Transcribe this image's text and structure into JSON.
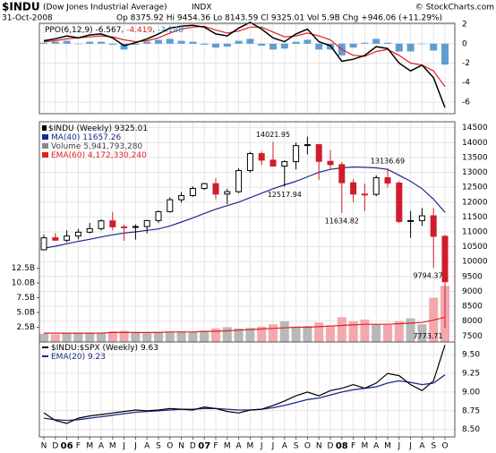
{
  "header": {
    "symbol": "$INDU",
    "name": "(Dow Jones Industrial Average)",
    "exchange": "INDX",
    "date": "31-Oct-2008",
    "quote": "Op 8375.92 Hi 9454.36 Lo 8143.59 Cl 9325.01 Vol 5.9B Chg +946.06 (+11.29%)",
    "copyright": "© StockCharts.com"
  },
  "chart_data": [
    {
      "type": "ppo",
      "title": "PPO(6,12,9)",
      "ylim": [
        -7.2,
        2.1
      ],
      "yticks": [
        2,
        0,
        -2,
        -4,
        -6
      ],
      "grid": true,
      "series": [
        {
          "color": "#000000",
          "values": [
            0.3,
            0.5,
            0.8,
            0.6,
            0.9,
            1.0,
            0.6,
            -0.2,
            0.1,
            0.5,
            1.0,
            1.6,
            1.8,
            1.9,
            1.7,
            1.0,
            0.8,
            1.6,
            2.2,
            1.5,
            0.6,
            0.2,
            1.0,
            1.5,
            0.2,
            -0.2,
            -1.8,
            -1.6,
            -1.2,
            -0.3,
            -0.5,
            -2.0,
            -2.8,
            -2.2,
            -3.5,
            -6.567
          ]
        },
        {
          "color": "#e02020",
          "values": [
            0.2,
            0.3,
            0.5,
            0.6,
            0.7,
            0.8,
            0.7,
            0.4,
            0.2,
            0.3,
            0.6,
            1.1,
            1.5,
            1.7,
            1.8,
            1.4,
            1.1,
            1.3,
            1.7,
            1.7,
            1.2,
            0.7,
            0.8,
            1.1,
            0.8,
            0.4,
            -0.6,
            -1.2,
            -1.3,
            -0.8,
            -0.6,
            -1.2,
            -2.0,
            -2.2,
            -2.8,
            -4.419
          ]
        },
        {
          "color": "#3a86c8",
          "values": [
            0.1,
            0.2,
            0.3,
            0,
            0.2,
            0.2,
            -0.1,
            -0.6,
            -0.1,
            0.2,
            0.4,
            0.5,
            0.3,
            0.2,
            -0.1,
            -0.4,
            -0.3,
            0.3,
            0.5,
            -0.2,
            -0.6,
            -0.5,
            0.2,
            0.4,
            -0.6,
            -0.6,
            -1.2,
            -0.4,
            0.1,
            0.5,
            0.1,
            -0.8,
            -0.8,
            0,
            -0.7,
            -2.148
          ]
        }
      ]
    },
    {
      "type": "ohlc",
      "title": "$INDU (Weekly)",
      "ylim": [
        7300,
        14700
      ],
      "yticks": [
        14500,
        14000,
        13500,
        13000,
        12500,
        12000,
        11500,
        11000,
        10500,
        10000,
        9500,
        9000,
        8500,
        8000,
        7500
      ],
      "grid": true,
      "up_color": "#000000",
      "down_color": "#d01c2c",
      "open": [
        10400,
        10800,
        10720,
        10860,
        10990,
        11110,
        11370,
        11170,
        11150,
        11180,
        11380,
        11680,
        12080,
        12220,
        12460,
        12620,
        12270,
        12350,
        13060,
        13630,
        13410,
        13210,
        13360,
        13900,
        13930,
        13370,
        13260,
        12650,
        12270,
        12260,
        12820,
        12640,
        11350,
        11380,
        11540,
        10850
      ],
      "high": [
        10900,
        10950,
        11050,
        11100,
        11300,
        11420,
        11670,
        11250,
        11250,
        11400,
        11720,
        12160,
        12340,
        12530,
        12650,
        12800,
        12450,
        13140,
        13690,
        13700,
        14021.95,
        13400,
        14000,
        14200,
        13950,
        13750,
        13350,
        12770,
        12620,
        12900,
        13136.69,
        12700,
        11700,
        11800,
        11800,
        10900
      ],
      "low": [
        10380,
        10700,
        10650,
        10750,
        10950,
        11050,
        11050,
        10700,
        10740,
        10950,
        11300,
        11650,
        11980,
        12180,
        12400,
        12100,
        11930,
        12300,
        12990,
        13250,
        13200,
        12517.94,
        13100,
        13600,
        12750,
        13100,
        11634.82,
        12000,
        11700,
        12200,
        12500,
        11300,
        10800,
        11200,
        9794.37,
        7773.71
      ],
      "close": [
        10800,
        10720,
        10860,
        10990,
        11110,
        11370,
        11170,
        11150,
        11180,
        11380,
        11680,
        12080,
        12220,
        12460,
        12620,
        12270,
        12350,
        13060,
        13630,
        13410,
        13210,
        13360,
        13900,
        13930,
        13370,
        13260,
        12650,
        12270,
        12260,
        12820,
        12640,
        11350,
        11380,
        11540,
        10850,
        9325.01
      ],
      "annotations": [
        14021.95,
        12517.94,
        13136.69,
        11634.82,
        9794.37,
        7773.71
      ],
      "ma": {
        "name": "MA(40)",
        "color": "#1c2a8c",
        "values": [
          10450,
          10520,
          10600,
          10680,
          10750,
          10830,
          10900,
          10960,
          11000,
          11050,
          11100,
          11200,
          11330,
          11470,
          11620,
          11760,
          11880,
          12000,
          12150,
          12300,
          12450,
          12580,
          12700,
          12850,
          13000,
          13100,
          13150,
          13180,
          13170,
          13150,
          13100,
          12900,
          12700,
          12450,
          12100,
          11657.26
        ]
      },
      "volume": {
        "name": "Volume",
        "label": "5,941,793,280",
        "up_color": "#b8b8b8",
        "down_color": "#f2a9ae",
        "values": [
          1.4,
          1.3,
          1.5,
          1.5,
          1.5,
          1.5,
          1.8,
          1.9,
          1.7,
          1.5,
          1.7,
          1.8,
          1.8,
          1.7,
          1.9,
          2.3,
          2.5,
          2.3,
          2.4,
          2.6,
          3.0,
          3.5,
          2.6,
          2.7,
          3.3,
          2.8,
          4.2,
          3.5,
          3.8,
          3.0,
          2.9,
          3.5,
          4.0,
          3.0,
          7.5,
          9.5
        ]
      },
      "volume_ema": {
        "name": "EMA(60)",
        "label": "4,172,330,240",
        "color": "#e02020",
        "values": [
          1.5,
          1.5,
          1.5,
          1.5,
          1.5,
          1.5,
          1.6,
          1.6,
          1.6,
          1.6,
          1.6,
          1.7,
          1.7,
          1.7,
          1.8,
          1.8,
          1.9,
          2.0,
          2.1,
          2.2,
          2.3,
          2.4,
          2.5,
          2.5,
          2.6,
          2.7,
          2.8,
          2.9,
          3.0,
          3.0,
          3.0,
          3.1,
          3.2,
          3.3,
          3.7,
          4.2
        ]
      },
      "y2lim": [
        0,
        37.3
      ],
      "y2ticks": [
        {
          "value": 12.5,
          "label": "12.5B"
        },
        {
          "value": 10,
          "label": "10.0B"
        },
        {
          "value": 7.5,
          "label": "7.5B"
        },
        {
          "value": 5,
          "label": "5.0B"
        },
        {
          "value": 2.5,
          "label": "2.5B"
        }
      ]
    },
    {
      "type": "line",
      "title": "$INDU:$SPX (Weekly)",
      "ylim": [
        8.4,
        9.67
      ],
      "grid": true,
      "yticks": [
        {
          "value": 9.5,
          "label": "9.50"
        },
        {
          "value": 9.25,
          "label": "9.25"
        },
        {
          "value": 9,
          "label": "9.00"
        },
        {
          "value": 8.75,
          "label": "8.75"
        },
        {
          "value": 8.5,
          "label": "8.50"
        }
      ],
      "categories": [
        "N",
        "D",
        "06",
        "F",
        "M",
        "A",
        "M",
        "J",
        "J",
        "A",
        "S",
        "O",
        "N",
        "D",
        "07",
        "F",
        "M",
        "A",
        "M",
        "J",
        "J",
        "A",
        "S",
        "O",
        "N",
        "D",
        "08",
        "F",
        "M",
        "A",
        "M",
        "J",
        "J",
        "A",
        "S",
        "O"
      ],
      "series": [
        {
          "color": "#000000",
          "values": [
            8.72,
            8.62,
            8.58,
            8.65,
            8.68,
            8.7,
            8.72,
            8.74,
            8.76,
            8.75,
            8.76,
            8.78,
            8.77,
            8.76,
            8.8,
            8.78,
            8.74,
            8.72,
            8.76,
            8.77,
            8.82,
            8.88,
            8.95,
            9.0,
            8.95,
            9.02,
            9.05,
            9.1,
            9.05,
            9.12,
            9.25,
            9.22,
            9.1,
            9.02,
            9.15,
            9.63
          ]
        },
        {
          "name": "EMA(20)",
          "color": "#1c2a8c",
          "values": [
            8.65,
            8.63,
            8.62,
            8.63,
            8.65,
            8.67,
            8.69,
            8.71,
            8.73,
            8.74,
            8.75,
            8.76,
            8.77,
            8.77,
            8.78,
            8.78,
            8.77,
            8.76,
            8.76,
            8.77,
            8.79,
            8.82,
            8.86,
            8.9,
            8.92,
            8.96,
            9.0,
            9.03,
            9.05,
            9.07,
            9.12,
            9.15,
            9.13,
            9.1,
            9.12,
            9.23
          ]
        }
      ]
    }
  ]
}
